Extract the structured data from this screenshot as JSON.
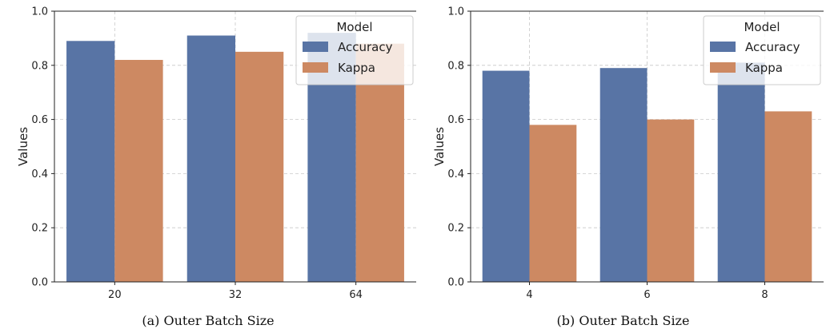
{
  "colors": {
    "accuracy": "#5874a5",
    "kappa": "#cd8962",
    "grid": "#c8c8c8",
    "axis": "#222222"
  },
  "chart_data": [
    {
      "type": "bar",
      "caption": "(a) Outer Batch Size",
      "categories": [
        "20",
        "32",
        "64"
      ],
      "series": [
        {
          "name": "Accuracy",
          "values": [
            0.89,
            0.91,
            0.92
          ]
        },
        {
          "name": "Kappa",
          "values": [
            0.82,
            0.85,
            0.88
          ]
        }
      ],
      "xlabel": "",
      "ylabel": "Values",
      "ylim": [
        0,
        1.0
      ],
      "yticks": [
        "0.0",
        "0.2",
        "0.4",
        "0.6",
        "0.8",
        "1.0"
      ],
      "grid": true,
      "legend": {
        "title": "Model",
        "placement": "top-right"
      }
    },
    {
      "type": "bar",
      "caption": "(b) Outer Batch Size",
      "categories": [
        "4",
        "6",
        "8"
      ],
      "series": [
        {
          "name": "Accuracy",
          "values": [
            0.78,
            0.79,
            0.81
          ]
        },
        {
          "name": "Kappa",
          "values": [
            0.58,
            0.6,
            0.63
          ]
        }
      ],
      "xlabel": "",
      "ylabel": "Values",
      "ylim": [
        0,
        1.0
      ],
      "yticks": [
        "0.0",
        "0.2",
        "0.4",
        "0.6",
        "0.8",
        "1.0"
      ],
      "grid": true,
      "legend": {
        "title": "Model",
        "placement": "top-right"
      }
    }
  ]
}
